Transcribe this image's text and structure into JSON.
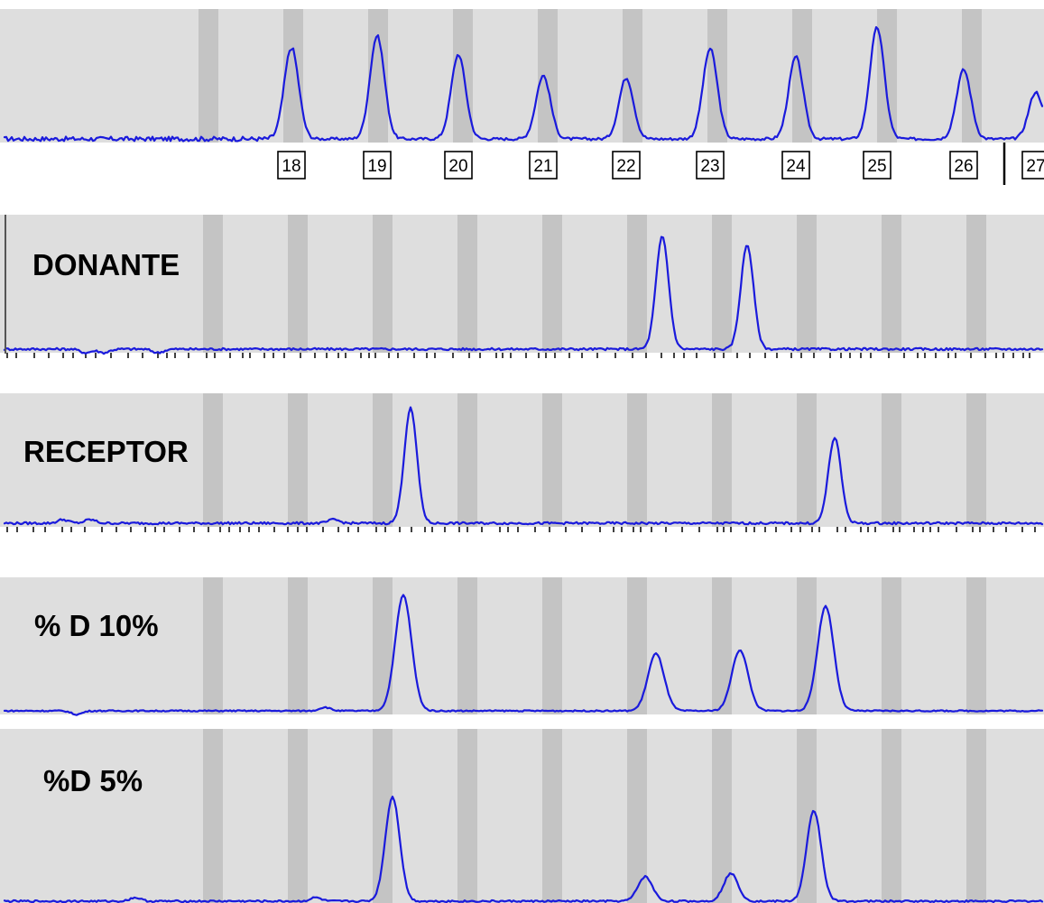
{
  "colors": {
    "trace": "#1a1adc",
    "band_light": "#dedede",
    "band_dark": "#c4c4c4",
    "tick": "#000000"
  },
  "chart_data": [
    {
      "type": "line",
      "panel": "ladder",
      "title": "",
      "peaks_labeled": true,
      "allele_labels": [
        "18",
        "19",
        "20",
        "21",
        "22",
        "23",
        "24",
        "25",
        "26",
        "27"
      ],
      "peaks": [
        {
          "label": "18",
          "height": 0.78
        },
        {
          "label": "19",
          "height": 0.88
        },
        {
          "label": "20",
          "height": 0.72
        },
        {
          "label": "21",
          "height": 0.54
        },
        {
          "label": "22",
          "height": 0.52
        },
        {
          "label": "23",
          "height": 0.77
        },
        {
          "label": "24",
          "height": 0.7
        },
        {
          "label": "25",
          "height": 0.95
        },
        {
          "label": "26",
          "height": 0.59
        },
        {
          "label": "27",
          "height": 0.4
        }
      ]
    },
    {
      "type": "line",
      "panel": "sample",
      "title": "DONANTE",
      "peaks": [
        {
          "allele": "23",
          "height": 0.96
        },
        {
          "allele": "24",
          "height": 0.89
        }
      ]
    },
    {
      "type": "line",
      "panel": "sample",
      "title": "RECEPTOR",
      "peaks": [
        {
          "allele": "20",
          "height": 0.98
        },
        {
          "allele": "25",
          "height": 0.73
        }
      ]
    },
    {
      "type": "line",
      "panel": "sample",
      "title": "% D 10%",
      "peaks": [
        {
          "allele": "20",
          "height": 0.95
        },
        {
          "allele": "23",
          "height": 0.47
        },
        {
          "allele": "24",
          "height": 0.5
        },
        {
          "allele": "25",
          "height": 0.86
        }
      ]
    },
    {
      "type": "line",
      "panel": "sample",
      "title": "%D 5%",
      "peaks": [
        {
          "allele": "20",
          "height": 0.98
        },
        {
          "allele": "23",
          "height": 0.23
        },
        {
          "allele": "24",
          "height": 0.26
        },
        {
          "allele": "25",
          "height": 0.85
        }
      ]
    }
  ]
}
